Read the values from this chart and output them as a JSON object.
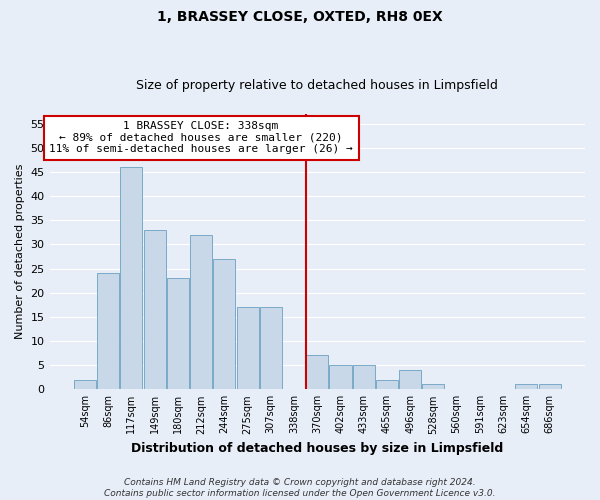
{
  "title": "1, BRASSEY CLOSE, OXTED, RH8 0EX",
  "subtitle": "Size of property relative to detached houses in Limpsfield",
  "xlabel": "Distribution of detached houses by size in Limpsfield",
  "ylabel": "Number of detached properties",
  "bar_labels": [
    "54sqm",
    "86sqm",
    "117sqm",
    "149sqm",
    "180sqm",
    "212sqm",
    "244sqm",
    "275sqm",
    "307sqm",
    "338sqm",
    "370sqm",
    "402sqm",
    "433sqm",
    "465sqm",
    "496sqm",
    "528sqm",
    "560sqm",
    "591sqm",
    "623sqm",
    "654sqm",
    "686sqm"
  ],
  "bar_values": [
    2,
    24,
    46,
    33,
    23,
    32,
    27,
    17,
    17,
    0,
    7,
    5,
    5,
    2,
    4,
    1,
    0,
    0,
    0,
    1,
    1
  ],
  "bar_color": "#c8d8e8",
  "bar_edge_color": "#7aaac8",
  "vline_color": "#cc0000",
  "annotation_text": "1 BRASSEY CLOSE: 338sqm\n← 89% of detached houses are smaller (220)\n11% of semi-detached houses are larger (26) →",
  "annotation_box_color": "#ffffff",
  "annotation_box_edge": "#cc0000",
  "ylim": [
    0,
    57
  ],
  "yticks": [
    0,
    5,
    10,
    15,
    20,
    25,
    30,
    35,
    40,
    45,
    50,
    55
  ],
  "footnote": "Contains HM Land Registry data © Crown copyright and database right 2024.\nContains public sector information licensed under the Open Government Licence v3.0.",
  "bg_color": "#e8eef8",
  "plot_bg_color": "#e8eef8",
  "grid_color": "#ffffff",
  "title_fontsize": 10,
  "subtitle_fontsize": 9,
  "xlabel_fontsize": 9,
  "ylabel_fontsize": 8,
  "tick_fontsize": 8,
  "annot_fontsize": 8,
  "footnote_fontsize": 6.5
}
